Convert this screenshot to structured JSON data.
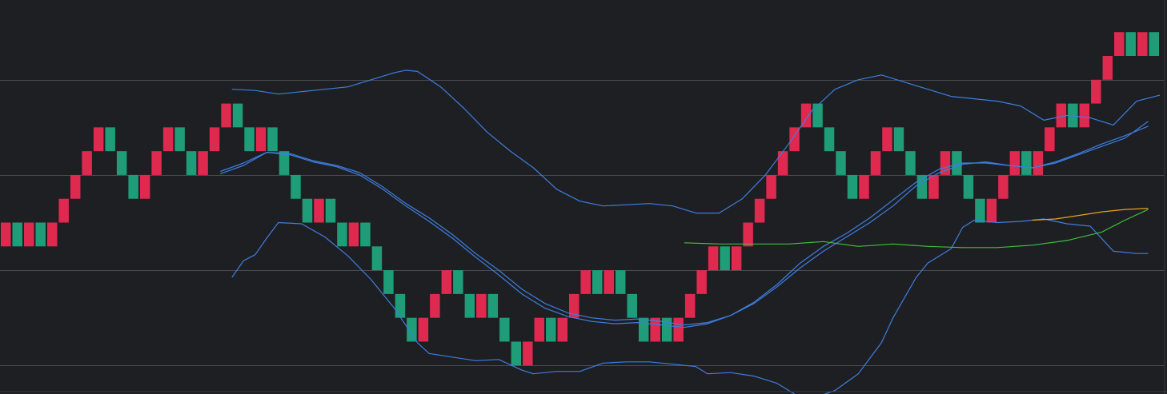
{
  "colors": {
    "background": "#1e1f23",
    "grid": "#4a4b50",
    "border": "#3a3b40",
    "up": "#e0294f",
    "down": "#1f9c78",
    "bb": "#3d7ee0",
    "ma": "#3d7ee0",
    "ma_green": "#3fbf3f",
    "ma_orange": "#e8a21a"
  },
  "chart_data": {
    "type": "renko",
    "box_size": 1,
    "y_range": [
      -6.1,
      10.35
    ],
    "x_range": [
      0,
      100
    ],
    "gridlines_y": [
      7,
      3,
      -1,
      -5
    ],
    "grid": true,
    "bricks": [
      {
        "low": 0,
        "high": 1,
        "dir": "up"
      },
      {
        "low": 0,
        "high": 1,
        "dir": "down"
      },
      {
        "low": 0,
        "high": 1,
        "dir": "up"
      },
      {
        "low": 0,
        "high": 1,
        "dir": "down"
      },
      {
        "low": 0,
        "high": 1,
        "dir": "up"
      },
      {
        "low": 1,
        "high": 2,
        "dir": "up"
      },
      {
        "low": 2,
        "high": 3,
        "dir": "up"
      },
      {
        "low": 3,
        "high": 4,
        "dir": "up"
      },
      {
        "low": 4,
        "high": 5,
        "dir": "up"
      },
      {
        "low": 4,
        "high": 5,
        "dir": "down"
      },
      {
        "low": 3,
        "high": 4,
        "dir": "down"
      },
      {
        "low": 2,
        "high": 3,
        "dir": "down"
      },
      {
        "low": 2,
        "high": 3,
        "dir": "up"
      },
      {
        "low": 3,
        "high": 4,
        "dir": "up"
      },
      {
        "low": 4,
        "high": 5,
        "dir": "up"
      },
      {
        "low": 4,
        "high": 5,
        "dir": "down"
      },
      {
        "low": 3,
        "high": 4,
        "dir": "down"
      },
      {
        "low": 3,
        "high": 4,
        "dir": "up"
      },
      {
        "low": 4,
        "high": 5,
        "dir": "up"
      },
      {
        "low": 5,
        "high": 6,
        "dir": "up"
      },
      {
        "low": 5,
        "high": 6,
        "dir": "down"
      },
      {
        "low": 4,
        "high": 5,
        "dir": "down"
      },
      {
        "low": 4,
        "high": 5,
        "dir": "up"
      },
      {
        "low": 4,
        "high": 5,
        "dir": "down"
      },
      {
        "low": 3,
        "high": 4,
        "dir": "down"
      },
      {
        "low": 2,
        "high": 3,
        "dir": "down"
      },
      {
        "low": 1,
        "high": 2,
        "dir": "down"
      },
      {
        "low": 1,
        "high": 2,
        "dir": "up"
      },
      {
        "low": 1,
        "high": 2,
        "dir": "down"
      },
      {
        "low": 0,
        "high": 1,
        "dir": "down"
      },
      {
        "low": 0,
        "high": 1,
        "dir": "up"
      },
      {
        "low": 0,
        "high": 1,
        "dir": "down"
      },
      {
        "low": -1,
        "high": 0,
        "dir": "down"
      },
      {
        "low": -2,
        "high": -1,
        "dir": "down"
      },
      {
        "low": -3,
        "high": -2,
        "dir": "down"
      },
      {
        "low": -4,
        "high": -3,
        "dir": "down"
      },
      {
        "low": -4,
        "high": -3,
        "dir": "up"
      },
      {
        "low": -3,
        "high": -2,
        "dir": "up"
      },
      {
        "low": -2,
        "high": -1,
        "dir": "up"
      },
      {
        "low": -2,
        "high": -1,
        "dir": "down"
      },
      {
        "low": -3,
        "high": -2,
        "dir": "down"
      },
      {
        "low": -3,
        "high": -2,
        "dir": "up"
      },
      {
        "low": -3,
        "high": -2,
        "dir": "down"
      },
      {
        "low": -4,
        "high": -3,
        "dir": "down"
      },
      {
        "low": -5,
        "high": -4,
        "dir": "down"
      },
      {
        "low": -5,
        "high": -4,
        "dir": "up"
      },
      {
        "low": -4,
        "high": -3,
        "dir": "up"
      },
      {
        "low": -4,
        "high": -3,
        "dir": "down"
      },
      {
        "low": -4,
        "high": -3,
        "dir": "up"
      },
      {
        "low": -3,
        "high": -2,
        "dir": "up"
      },
      {
        "low": -2,
        "high": -1,
        "dir": "up"
      },
      {
        "low": -2,
        "high": -1,
        "dir": "down"
      },
      {
        "low": -2,
        "high": -1,
        "dir": "up"
      },
      {
        "low": -2,
        "high": -1,
        "dir": "down"
      },
      {
        "low": -3,
        "high": -2,
        "dir": "down"
      },
      {
        "low": -4,
        "high": -3,
        "dir": "down"
      },
      {
        "low": -4,
        "high": -3,
        "dir": "up"
      },
      {
        "low": -4,
        "high": -3,
        "dir": "down"
      },
      {
        "low": -4,
        "high": -3,
        "dir": "up"
      },
      {
        "low": -3,
        "high": -2,
        "dir": "up"
      },
      {
        "low": -2,
        "high": -1,
        "dir": "up"
      },
      {
        "low": -1,
        "high": 0,
        "dir": "up"
      },
      {
        "low": -1,
        "high": 0,
        "dir": "down"
      },
      {
        "low": -1,
        "high": 0,
        "dir": "up"
      },
      {
        "low": 0,
        "high": 1,
        "dir": "up"
      },
      {
        "low": 1,
        "high": 2,
        "dir": "up"
      },
      {
        "low": 2,
        "high": 3,
        "dir": "up"
      },
      {
        "low": 3,
        "high": 4,
        "dir": "up"
      },
      {
        "low": 4,
        "high": 5,
        "dir": "up"
      },
      {
        "low": 5,
        "high": 6,
        "dir": "up"
      },
      {
        "low": 5,
        "high": 6,
        "dir": "down"
      },
      {
        "low": 4,
        "high": 5,
        "dir": "down"
      },
      {
        "low": 3,
        "high": 4,
        "dir": "down"
      },
      {
        "low": 2,
        "high": 3,
        "dir": "down"
      },
      {
        "low": 2,
        "high": 3,
        "dir": "up"
      },
      {
        "low": 3,
        "high": 4,
        "dir": "up"
      },
      {
        "low": 4,
        "high": 5,
        "dir": "up"
      },
      {
        "low": 4,
        "high": 5,
        "dir": "down"
      },
      {
        "low": 3,
        "high": 4,
        "dir": "down"
      },
      {
        "low": 2,
        "high": 3,
        "dir": "down"
      },
      {
        "low": 2,
        "high": 3,
        "dir": "up"
      },
      {
        "low": 3,
        "high": 4,
        "dir": "up"
      },
      {
        "low": 3,
        "high": 4,
        "dir": "down"
      },
      {
        "low": 2,
        "high": 3,
        "dir": "down"
      },
      {
        "low": 1,
        "high": 2,
        "dir": "down"
      },
      {
        "low": 1,
        "high": 2,
        "dir": "up"
      },
      {
        "low": 2,
        "high": 3,
        "dir": "up"
      },
      {
        "low": 3,
        "high": 4,
        "dir": "up"
      },
      {
        "low": 3,
        "high": 4,
        "dir": "down"
      },
      {
        "low": 3,
        "high": 4,
        "dir": "up"
      },
      {
        "low": 4,
        "high": 5,
        "dir": "up"
      },
      {
        "low": 5,
        "high": 6,
        "dir": "up"
      },
      {
        "low": 5,
        "high": 6,
        "dir": "down"
      },
      {
        "low": 5,
        "high": 6,
        "dir": "up"
      },
      {
        "low": 6,
        "high": 7,
        "dir": "up"
      },
      {
        "low": 7,
        "high": 8,
        "dir": "up"
      },
      {
        "low": 8,
        "high": 9,
        "dir": "up"
      },
      {
        "low": 8,
        "high": 9,
        "dir": "down"
      },
      {
        "low": 8,
        "high": 9,
        "dir": "up"
      },
      {
        "low": 8,
        "high": 9,
        "dir": "down"
      }
    ],
    "series": [
      {
        "key": "bb_upper",
        "style": "bb",
        "points": [
          [
            20,
            6.6
          ],
          [
            22,
            6.55
          ],
          [
            24,
            6.4
          ],
          [
            26,
            6.5
          ],
          [
            28,
            6.6
          ],
          [
            30,
            6.7
          ],
          [
            32,
            7.0
          ],
          [
            34,
            7.3
          ],
          [
            35,
            7.4
          ],
          [
            36,
            7.35
          ],
          [
            38,
            6.7
          ],
          [
            40,
            5.8
          ],
          [
            42,
            4.8
          ],
          [
            44,
            4.0
          ],
          [
            46,
            3.3
          ],
          [
            48,
            2.4
          ],
          [
            50,
            1.9
          ],
          [
            52,
            1.7
          ],
          [
            54,
            1.75
          ],
          [
            56,
            1.8
          ],
          [
            58,
            1.7
          ],
          [
            60,
            1.4
          ],
          [
            62,
            1.4
          ],
          [
            64,
            2.0
          ],
          [
            66,
            3.0
          ],
          [
            68,
            4.3
          ],
          [
            70,
            5.7
          ],
          [
            72,
            6.6
          ],
          [
            74,
            7.0
          ],
          [
            76,
            7.2
          ],
          [
            78,
            6.9
          ],
          [
            80,
            6.6
          ],
          [
            82,
            6.3
          ],
          [
            84,
            6.2
          ],
          [
            86,
            6.1
          ],
          [
            88,
            5.9
          ],
          [
            90,
            5.3
          ],
          [
            92,
            5.5
          ],
          [
            94,
            5.4
          ],
          [
            96,
            5.1
          ],
          [
            98,
            6.1
          ],
          [
            100,
            6.35
          ]
        ]
      },
      {
        "key": "bb_middle",
        "style": "bb",
        "points": [
          [
            19,
            3.05
          ],
          [
            21,
            3.4
          ],
          [
            23,
            3.95
          ],
          [
            25,
            3.9
          ],
          [
            27,
            3.6
          ],
          [
            29,
            3.4
          ],
          [
            31,
            3.1
          ],
          [
            33,
            2.5
          ],
          [
            35,
            1.8
          ],
          [
            37,
            1.2
          ],
          [
            39,
            0.5
          ],
          [
            41,
            -0.3
          ],
          [
            43,
            -1.0
          ],
          [
            45,
            -1.8
          ],
          [
            47,
            -2.4
          ],
          [
            49,
            -2.8
          ],
          [
            51,
            -3.0
          ],
          [
            53,
            -3.1
          ],
          [
            55,
            -3.05
          ],
          [
            57,
            -3.15
          ],
          [
            59,
            -3.3
          ],
          [
            61,
            -3.2
          ],
          [
            63,
            -2.9
          ],
          [
            65,
            -2.4
          ],
          [
            67,
            -1.7
          ],
          [
            69,
            -0.9
          ],
          [
            71,
            -0.2
          ],
          [
            73,
            0.4
          ],
          [
            75,
            1.0
          ],
          [
            77,
            1.7
          ],
          [
            79,
            2.55
          ],
          [
            81,
            3.1
          ],
          [
            83,
            3.45
          ],
          [
            85,
            3.55
          ],
          [
            87,
            3.4
          ],
          [
            89,
            3.3
          ],
          [
            91,
            3.55
          ],
          [
            93,
            3.9
          ],
          [
            95,
            4.3
          ],
          [
            97,
            4.65
          ],
          [
            99,
            5.05
          ]
        ]
      },
      {
        "key": "ma_blue",
        "style": "ma",
        "points": [
          [
            19,
            3.15
          ],
          [
            21,
            3.5
          ],
          [
            23,
            3.95
          ],
          [
            25,
            3.85
          ],
          [
            27,
            3.55
          ],
          [
            29,
            3.35
          ],
          [
            31,
            3.0
          ],
          [
            33,
            2.4
          ],
          [
            35,
            1.7
          ],
          [
            37,
            1.05
          ],
          [
            39,
            0.35
          ],
          [
            41,
            -0.45
          ],
          [
            43,
            -1.2
          ],
          [
            45,
            -2.0
          ],
          [
            47,
            -2.6
          ],
          [
            49,
            -2.95
          ],
          [
            51,
            -3.15
          ],
          [
            53,
            -3.25
          ],
          [
            55,
            -3.2
          ],
          [
            57,
            -3.3
          ],
          [
            59,
            -3.4
          ],
          [
            61,
            -3.25
          ],
          [
            63,
            -2.9
          ],
          [
            65,
            -2.35
          ],
          [
            67,
            -1.6
          ],
          [
            69,
            -0.7
          ],
          [
            71,
            0.0
          ],
          [
            73,
            0.55
          ],
          [
            75,
            1.2
          ],
          [
            77,
            1.95
          ],
          [
            79,
            2.7
          ],
          [
            81,
            3.25
          ],
          [
            83,
            3.5
          ],
          [
            85,
            3.5
          ],
          [
            87,
            3.4
          ],
          [
            89,
            3.3
          ],
          [
            91,
            3.5
          ],
          [
            93,
            3.85
          ],
          [
            95,
            4.2
          ],
          [
            97,
            4.55
          ],
          [
            99,
            5.25
          ]
        ]
      },
      {
        "key": "bb_lower",
        "style": "bb",
        "points": [
          [
            20,
            -1.3
          ],
          [
            21,
            -0.6
          ],
          [
            22,
            -0.35
          ],
          [
            23,
            0.35
          ],
          [
            24,
            1.0
          ],
          [
            26,
            0.95
          ],
          [
            28,
            0.4
          ],
          [
            30,
            -0.4
          ],
          [
            32,
            -1.4
          ],
          [
            34,
            -2.6
          ],
          [
            36,
            -4.05
          ],
          [
            37,
            -4.5
          ],
          [
            39,
            -4.65
          ],
          [
            41,
            -4.8
          ],
          [
            43,
            -4.75
          ],
          [
            45,
            -5.2
          ],
          [
            46,
            -5.35
          ],
          [
            48,
            -5.25
          ],
          [
            50,
            -5.25
          ],
          [
            52,
            -4.9
          ],
          [
            54,
            -4.85
          ],
          [
            56,
            -4.85
          ],
          [
            58,
            -4.95
          ],
          [
            60,
            -5.05
          ],
          [
            61,
            -5.35
          ],
          [
            63,
            -5.3
          ],
          [
            65,
            -5.45
          ],
          [
            67,
            -5.75
          ],
          [
            69,
            -6.35
          ],
          [
            70,
            -6.4
          ],
          [
            72,
            -6.05
          ],
          [
            74,
            -5.35
          ],
          [
            76,
            -4.05
          ],
          [
            77,
            -3.0
          ],
          [
            79,
            -1.3
          ],
          [
            80,
            -0.7
          ],
          [
            82,
            -0.1
          ],
          [
            83,
            0.8
          ],
          [
            84,
            1.1
          ],
          [
            86,
            1.0
          ],
          [
            88,
            1.05
          ],
          [
            90,
            1.15
          ],
          [
            92,
            0.95
          ],
          [
            94,
            0.85
          ],
          [
            96,
            -0.2
          ],
          [
            98,
            -0.3
          ],
          [
            99,
            -0.3
          ]
        ]
      },
      {
        "key": "ma_green",
        "style": "ma_green",
        "points": [
          [
            59,
            0.15
          ],
          [
            62,
            0.1
          ],
          [
            65,
            0.1
          ],
          [
            68,
            0.1
          ],
          [
            71,
            0.2
          ],
          [
            74,
            0.0
          ],
          [
            77,
            0.1
          ],
          [
            80,
            0.0
          ],
          [
            83,
            -0.05
          ],
          [
            86,
            -0.05
          ],
          [
            89,
            0.05
          ],
          [
            92,
            0.25
          ],
          [
            95,
            0.6
          ],
          [
            97,
            1.1
          ],
          [
            99,
            1.55
          ]
        ]
      },
      {
        "key": "ma_orange",
        "style": "ma_orange",
        "points": [
          [
            89,
            1.1
          ],
          [
            91,
            1.15
          ],
          [
            93,
            1.3
          ],
          [
            95,
            1.45
          ],
          [
            97,
            1.55
          ],
          [
            99,
            1.6
          ]
        ]
      }
    ]
  }
}
